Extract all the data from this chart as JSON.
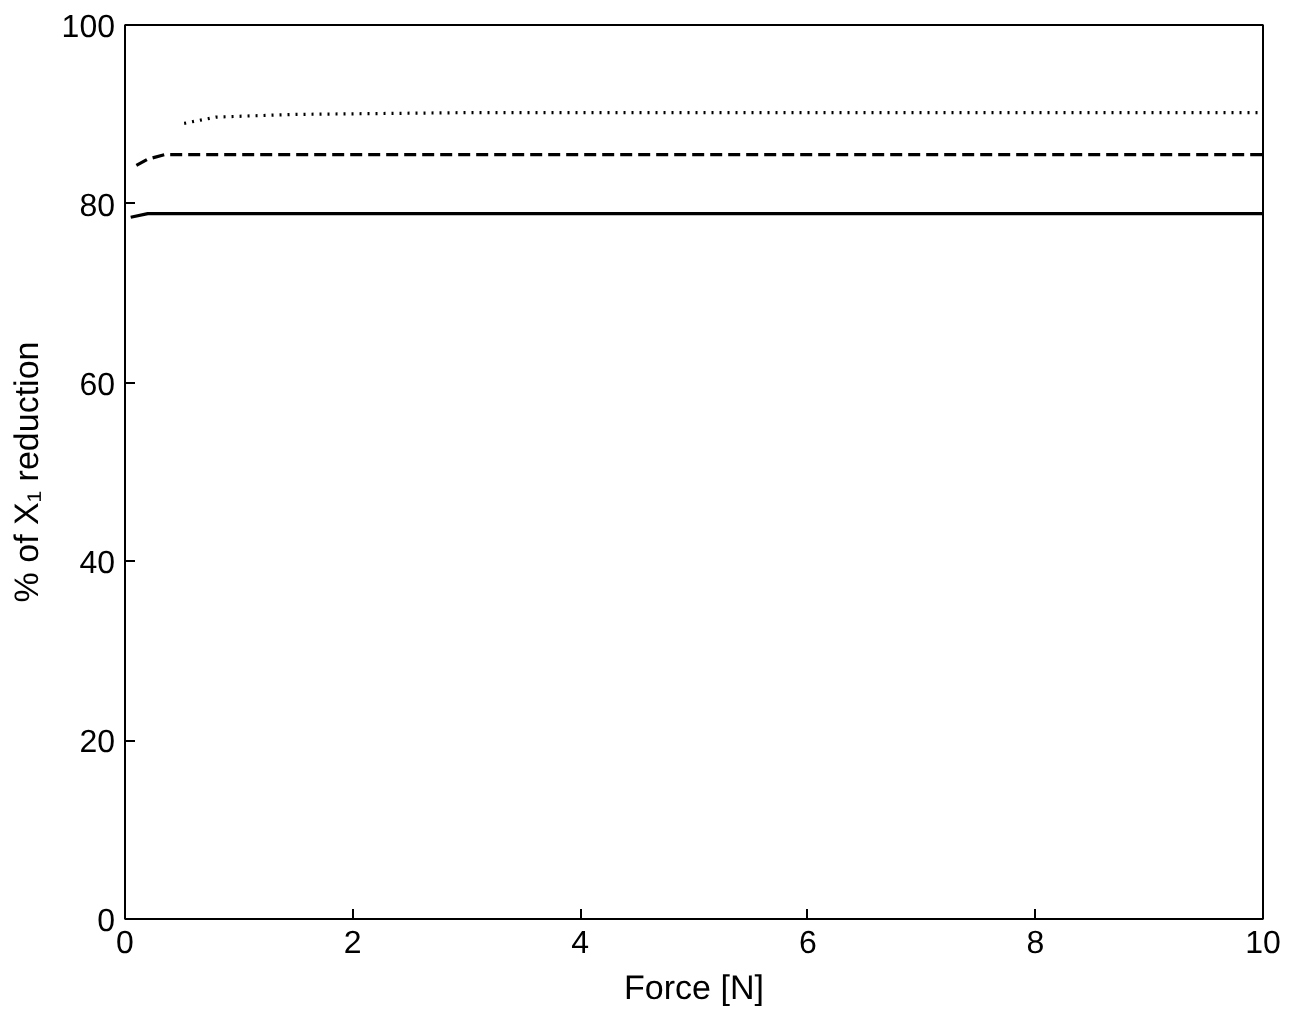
{
  "chart_data": {
    "type": "line",
    "xlabel": "Force [N]",
    "ylabel": "% of X₁ reduction",
    "xlim": [
      0,
      10
    ],
    "ylim": [
      0,
      100
    ],
    "xticks": [
      0,
      2,
      4,
      6,
      8,
      10
    ],
    "yticks": [
      0,
      20,
      40,
      60,
      80,
      100
    ],
    "grid": false,
    "series": [
      {
        "color": "#000000",
        "line_style": "solid",
        "x": [
          0.05,
          0.2,
          1,
          5,
          10
        ],
        "values": [
          78.5,
          78.9,
          78.9,
          78.9,
          78.9
        ]
      },
      {
        "color": "#000000",
        "line_style": "dashed",
        "x": [
          0.1,
          0.2,
          0.35,
          1,
          5,
          10
        ],
        "values": [
          84.3,
          85.0,
          85.5,
          85.5,
          85.5,
          85.5
        ]
      },
      {
        "color": "#000000",
        "line_style": "dotted",
        "x": [
          0.52,
          0.8,
          1.5,
          3,
          10
        ],
        "values": [
          89.0,
          89.7,
          90.0,
          90.2,
          90.2
        ]
      }
    ]
  }
}
